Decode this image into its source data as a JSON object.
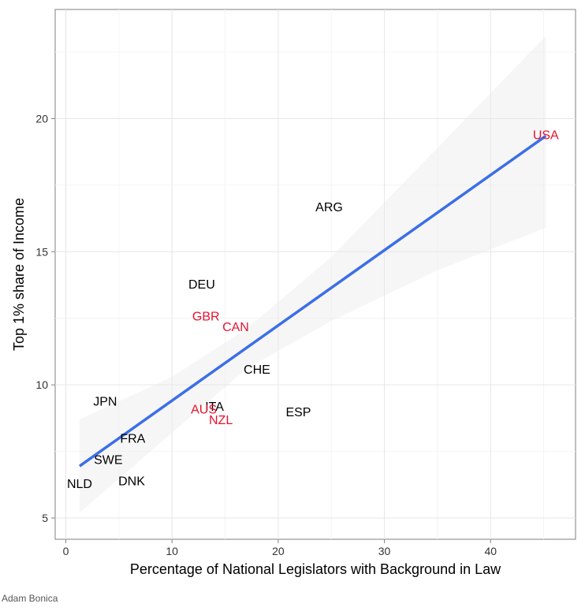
{
  "chart_data": {
    "type": "scatter",
    "title": "",
    "xlabel": "Percentage of National Legislators with Background in Law",
    "ylabel": "Top 1% share of Income",
    "xlim": [
      -1,
      48
    ],
    "ylim": [
      4.2,
      24.1
    ],
    "xticks": [
      0,
      10,
      20,
      30,
      40
    ],
    "yticks": [
      5,
      10,
      15,
      20
    ],
    "grid": true,
    "legend": "none",
    "colors": {
      "highlight": "#e8112d",
      "default": "#000000",
      "fit_line": "#3b6ee8",
      "band": "#ebebeb"
    },
    "points": [
      {
        "label": "USA",
        "x": 45.2,
        "y": 19.4,
        "highlight": true
      },
      {
        "label": "ARG",
        "x": 24.8,
        "y": 16.7,
        "highlight": false
      },
      {
        "label": "DEU",
        "x": 12.8,
        "y": 13.8,
        "highlight": false
      },
      {
        "label": "GBR",
        "x": 13.2,
        "y": 12.6,
        "highlight": true
      },
      {
        "label": "CAN",
        "x": 16.0,
        "y": 12.2,
        "highlight": true
      },
      {
        "label": "CHE",
        "x": 18.0,
        "y": 10.6,
        "highlight": false
      },
      {
        "label": "JPN",
        "x": 3.7,
        "y": 9.4,
        "highlight": false
      },
      {
        "label": "ITA",
        "x": 14.0,
        "y": 9.2,
        "highlight": false
      },
      {
        "label": "AUS",
        "x": 13.0,
        "y": 9.1,
        "highlight": true
      },
      {
        "label": "ESP",
        "x": 21.9,
        "y": 9.0,
        "highlight": false
      },
      {
        "label": "NZL",
        "x": 14.6,
        "y": 8.7,
        "highlight": true
      },
      {
        "label": "FRA",
        "x": 6.3,
        "y": 8.0,
        "highlight": false
      },
      {
        "label": "SWE",
        "x": 4.0,
        "y": 7.2,
        "highlight": false
      },
      {
        "label": "DNK",
        "x": 6.2,
        "y": 6.4,
        "highlight": false
      },
      {
        "label": "NLD",
        "x": 1.3,
        "y": 6.3,
        "highlight": false
      }
    ],
    "fit": {
      "x": [
        1.3,
        45.2
      ],
      "y": [
        6.95,
        19.35
      ]
    },
    "band": [
      {
        "x": 1.3,
        "lo": 5.2,
        "hi": 8.7
      },
      {
        "x": 10,
        "lo": 8.2,
        "hi": 10.3
      },
      {
        "x": 17,
        "lo": 10.6,
        "hi": 12.1
      },
      {
        "x": 25,
        "lo": 12.4,
        "hi": 14.8
      },
      {
        "x": 35,
        "lo": 14.3,
        "hi": 18.9
      },
      {
        "x": 45.2,
        "lo": 15.9,
        "hi": 23.1
      }
    ]
  },
  "credit": "Adam Bonica"
}
